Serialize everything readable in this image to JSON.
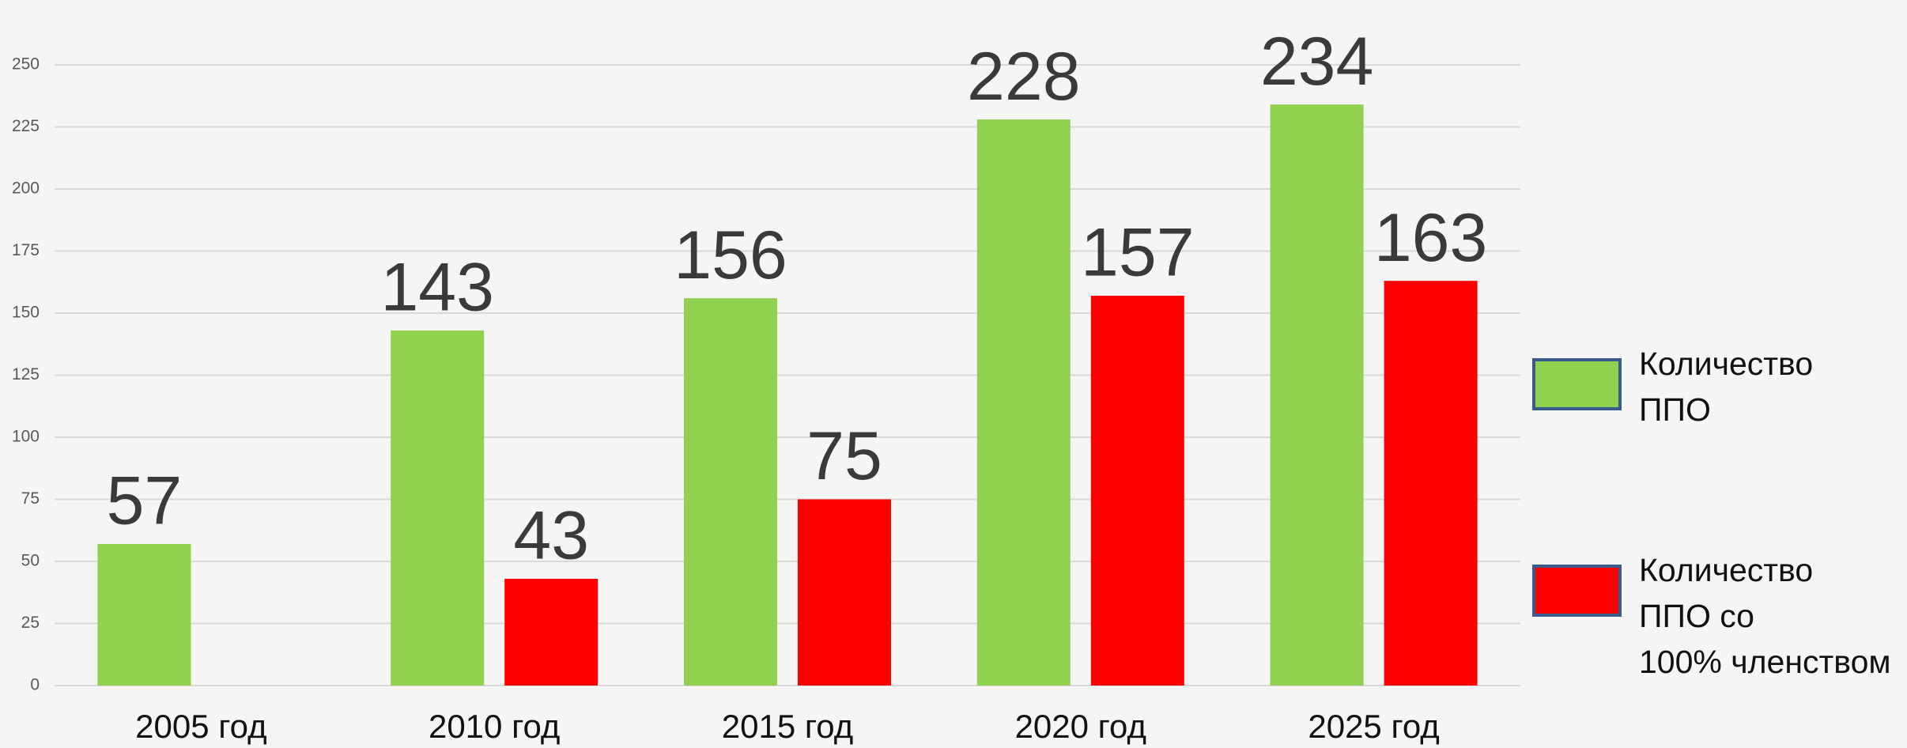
{
  "chart_data": {
    "type": "bar",
    "categories": [
      "2005 год",
      "2010 год",
      "2015 год",
      "2020 год",
      "2025 год"
    ],
    "series": [
      {
        "name": "Количество\nППО",
        "color": "#92d050",
        "values": [
          57,
          143,
          156,
          228,
          234
        ]
      },
      {
        "name": "Количество\nППО со\n100% членством",
        "color": "#ff0000",
        "values": [
          null,
          43,
          75,
          157,
          163
        ]
      }
    ],
    "ylim": [
      0,
      250
    ],
    "yticks": [
      0,
      25,
      50,
      75,
      100,
      125,
      150,
      175,
      200,
      225,
      250
    ],
    "grid": true,
    "legend": "right"
  }
}
